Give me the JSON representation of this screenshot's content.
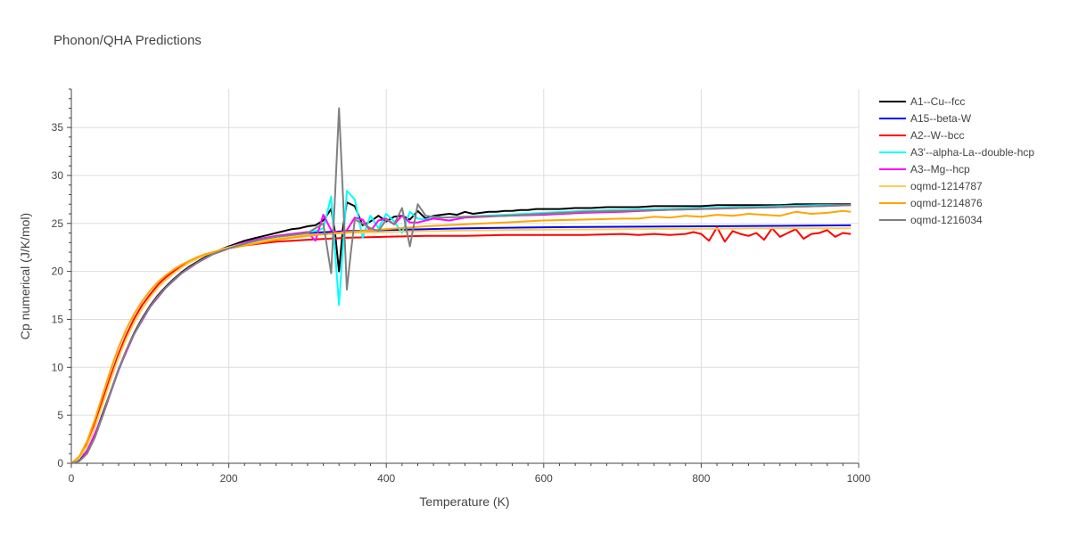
{
  "chart_data": {
    "type": "line",
    "title": "Phonon/QHA Predictions",
    "xlabel": "Temperature (K)",
    "ylabel": "Cp numerical (J/K/mol)",
    "xlim": [
      0,
      1000
    ],
    "ylim": [
      0,
      39
    ],
    "xticks": [
      0,
      200,
      400,
      600,
      800,
      1000
    ],
    "yticks": [
      0,
      5,
      10,
      15,
      20,
      25,
      30,
      35
    ],
    "grid": true,
    "legend_position": "right",
    "series": [
      {
        "name": "A1--Cu--fcc",
        "color": "#000000",
        "x": [
          0,
          10,
          20,
          30,
          40,
          50,
          60,
          70,
          80,
          90,
          100,
          110,
          120,
          130,
          140,
          150,
          160,
          170,
          180,
          190,
          200,
          210,
          220,
          230,
          240,
          250,
          260,
          270,
          280,
          290,
          300,
          310,
          320,
          330,
          335,
          340,
          345,
          350,
          360,
          370,
          380,
          390,
          400,
          410,
          420,
          430,
          440,
          450,
          460,
          470,
          480,
          490,
          500,
          510,
          520,
          530,
          540,
          550,
          560,
          570,
          580,
          590,
          600,
          620,
          640,
          660,
          680,
          700,
          720,
          740,
          760,
          780,
          800,
          820,
          840,
          860,
          880,
          900,
          920,
          940,
          960,
          980,
          990
        ],
        "y": [
          0,
          0.3,
          1.3,
          3.0,
          5.2,
          7.5,
          9.8,
          11.8,
          13.6,
          15.1,
          16.4,
          17.5,
          18.4,
          19.2,
          19.9,
          20.5,
          21.0,
          21.5,
          21.9,
          22.3,
          22.6,
          22.9,
          23.2,
          23.4,
          23.6,
          23.8,
          24.0,
          24.2,
          24.4,
          24.5,
          24.7,
          24.8,
          25.3,
          26.5,
          24.0,
          20.0,
          24.5,
          27.2,
          26.8,
          24.8,
          25.2,
          25.8,
          25.2,
          25.7,
          25.8,
          25.4,
          26.3,
          25.5,
          25.8,
          25.9,
          26.0,
          25.9,
          26.2,
          26.0,
          26.1,
          26.2,
          26.2,
          26.3,
          26.3,
          26.4,
          26.4,
          26.5,
          26.5,
          26.5,
          26.6,
          26.6,
          26.7,
          26.7,
          26.7,
          26.8,
          26.8,
          26.8,
          26.8,
          26.9,
          26.9,
          26.9,
          26.9,
          26.9,
          27.0,
          27.0,
          27.0,
          27.0,
          27.0
        ]
      },
      {
        "name": "A15--beta-W",
        "color": "#0000ff",
        "x": [
          0,
          10,
          20,
          30,
          40,
          50,
          60,
          70,
          80,
          90,
          100,
          110,
          120,
          130,
          140,
          150,
          160,
          170,
          180,
          190,
          200,
          220,
          240,
          260,
          280,
          300,
          350,
          400,
          450,
          500,
          600,
          700,
          800,
          900,
          990
        ],
        "y": [
          0,
          0.3,
          1.2,
          2.8,
          5.0,
          7.4,
          9.7,
          11.7,
          13.5,
          15.0,
          16.3,
          17.4,
          18.3,
          19.1,
          19.8,
          20.4,
          20.9,
          21.4,
          21.8,
          22.1,
          22.4,
          22.9,
          23.3,
          23.6,
          23.8,
          24.0,
          24.2,
          24.3,
          24.4,
          24.5,
          24.6,
          24.65,
          24.7,
          24.75,
          24.8
        ]
      },
      {
        "name": "A2--W--bcc",
        "color": "#ff0000",
        "x": [
          0,
          10,
          20,
          30,
          40,
          50,
          60,
          70,
          80,
          90,
          100,
          110,
          120,
          130,
          140,
          150,
          160,
          170,
          180,
          190,
          200,
          220,
          240,
          260,
          280,
          300,
          350,
          400,
          450,
          500,
          550,
          600,
          650,
          700,
          720,
          740,
          760,
          780,
          790,
          800,
          810,
          820,
          830,
          840,
          850,
          860,
          870,
          880,
          890,
          900,
          910,
          920,
          930,
          940,
          950,
          960,
          970,
          980,
          990
        ],
        "y": [
          0,
          0.6,
          2.0,
          4.1,
          6.6,
          9.1,
          11.4,
          13.4,
          15.1,
          16.5,
          17.6,
          18.6,
          19.4,
          20.0,
          20.5,
          21.0,
          21.4,
          21.7,
          22.0,
          22.2,
          22.4,
          22.7,
          22.9,
          23.1,
          23.2,
          23.3,
          23.5,
          23.6,
          23.7,
          23.7,
          23.8,
          23.8,
          23.8,
          23.9,
          23.8,
          23.9,
          23.8,
          23.9,
          24.1,
          23.9,
          23.2,
          24.6,
          23.1,
          24.2,
          23.9,
          23.7,
          24.0,
          23.3,
          24.5,
          23.6,
          24.0,
          24.4,
          23.4,
          23.9,
          24.0,
          24.3,
          23.6,
          24.0,
          23.9
        ]
      },
      {
        "name": "A3'--alpha-La--double-hcp",
        "color": "#00ffff",
        "x": [
          0,
          20,
          40,
          60,
          80,
          100,
          120,
          140,
          160,
          180,
          200,
          220,
          240,
          260,
          280,
          300,
          310,
          320,
          330,
          335,
          340,
          345,
          350,
          360,
          370,
          380,
          390,
          400,
          410,
          420,
          430,
          440,
          450,
          460,
          480,
          500,
          550,
          600,
          650,
          700,
          750,
          800,
          850,
          900,
          950,
          990
        ],
        "y": [
          0,
          1.2,
          5.0,
          9.8,
          13.5,
          16.3,
          18.3,
          19.8,
          20.9,
          21.8,
          22.5,
          23.0,
          23.4,
          23.7,
          23.9,
          24.1,
          24.2,
          24.5,
          27.8,
          22.0,
          16.5,
          22.5,
          28.4,
          27.5,
          23.5,
          25.8,
          24.5,
          26.0,
          25.2,
          24.0,
          26.2,
          25.5,
          25.4,
          25.7,
          25.6,
          25.7,
          25.9,
          26.1,
          26.3,
          26.4,
          26.5,
          26.6,
          26.7,
          26.8,
          26.9,
          26.9
        ]
      },
      {
        "name": "A3--Mg--hcp",
        "color": "#ff00ff",
        "x": [
          0,
          20,
          40,
          60,
          80,
          100,
          120,
          140,
          160,
          180,
          200,
          220,
          240,
          260,
          280,
          300,
          310,
          320,
          330,
          340,
          350,
          360,
          370,
          380,
          390,
          400,
          410,
          420,
          430,
          440,
          460,
          480,
          500,
          550,
          600,
          650,
          700,
          750,
          800,
          850,
          900,
          950,
          990
        ],
        "y": [
          0,
          1.2,
          5.0,
          9.8,
          13.5,
          16.3,
          18.3,
          19.8,
          20.9,
          21.8,
          22.5,
          23.0,
          23.4,
          23.7,
          23.9,
          24.1,
          23.2,
          25.9,
          24.3,
          24.0,
          24.3,
          25.6,
          25.4,
          24.2,
          25.3,
          25.5,
          24.9,
          25.8,
          25.1,
          25.1,
          25.5,
          25.3,
          25.6,
          25.8,
          25.9,
          26.1,
          26.2,
          26.4,
          26.5,
          26.6,
          26.7,
          26.8,
          26.9
        ]
      },
      {
        "name": "oqmd-1214787",
        "color": "#fecb52",
        "x": [
          0,
          10,
          20,
          30,
          40,
          50,
          60,
          70,
          80,
          90,
          100,
          110,
          120,
          130,
          140,
          150,
          160,
          170,
          180,
          190,
          200,
          220,
          240,
          260,
          280,
          300,
          350,
          400,
          450,
          500,
          550,
          600,
          700,
          800,
          900,
          990
        ],
        "y": [
          0,
          0.5,
          1.8,
          3.8,
          6.2,
          8.7,
          11.0,
          13.0,
          14.7,
          16.1,
          17.3,
          18.3,
          19.1,
          19.8,
          20.4,
          20.9,
          21.3,
          21.7,
          22.0,
          22.3,
          22.5,
          22.9,
          23.2,
          23.4,
          23.6,
          23.8,
          24.0,
          24.1,
          24.2,
          24.25,
          24.3,
          24.35,
          24.4,
          24.45,
          24.5,
          24.5
        ]
      },
      {
        "name": "oqmd-1214876",
        "color": "#ffa500",
        "x": [
          0,
          10,
          20,
          30,
          40,
          50,
          60,
          70,
          80,
          90,
          100,
          110,
          120,
          130,
          140,
          150,
          160,
          170,
          180,
          190,
          200,
          220,
          240,
          260,
          280,
          300,
          350,
          400,
          450,
          500,
          550,
          600,
          650,
          700,
          720,
          740,
          760,
          780,
          800,
          820,
          840,
          860,
          880,
          900,
          920,
          940,
          960,
          980,
          990
        ],
        "y": [
          0,
          0.7,
          2.3,
          4.6,
          7.2,
          9.8,
          12.1,
          14.0,
          15.6,
          16.9,
          18.0,
          18.9,
          19.6,
          20.2,
          20.7,
          21.1,
          21.5,
          21.8,
          22.0,
          22.2,
          22.4,
          22.7,
          23.0,
          23.3,
          23.5,
          23.7,
          24.1,
          24.4,
          24.7,
          24.9,
          25.1,
          25.3,
          25.4,
          25.5,
          25.5,
          25.7,
          25.6,
          25.8,
          25.7,
          25.9,
          25.8,
          26.0,
          25.9,
          25.8,
          26.2,
          26.0,
          26.1,
          26.3,
          26.2
        ]
      },
      {
        "name": "oqmd-1216034",
        "color": "#808080",
        "x": [
          0,
          10,
          20,
          30,
          40,
          50,
          60,
          70,
          80,
          90,
          100,
          110,
          120,
          130,
          140,
          150,
          160,
          170,
          180,
          190,
          200,
          220,
          240,
          260,
          280,
          300,
          320,
          330,
          335,
          340,
          345,
          350,
          355,
          360,
          370,
          380,
          390,
          400,
          410,
          420,
          430,
          440,
          450,
          470,
          500,
          550,
          600,
          650,
          700,
          750,
          800,
          850,
          900,
          950,
          990
        ],
        "y": [
          0,
          0.2,
          1.0,
          2.7,
          5.0,
          7.5,
          9.8,
          11.8,
          13.5,
          15.0,
          16.3,
          17.4,
          18.3,
          19.1,
          19.8,
          20.4,
          20.9,
          21.4,
          21.8,
          22.1,
          22.4,
          22.9,
          23.3,
          23.6,
          23.8,
          24.0,
          25.0,
          19.8,
          28.0,
          37.0,
          28.0,
          18.1,
          22.0,
          25.4,
          25.0,
          24.5,
          24.2,
          25.4,
          24.9,
          26.6,
          22.6,
          27.0,
          25.8,
          25.6,
          25.7,
          25.8,
          26.0,
          26.2,
          26.3,
          26.4,
          26.5,
          26.6,
          26.7,
          26.8,
          26.9
        ]
      }
    ]
  }
}
